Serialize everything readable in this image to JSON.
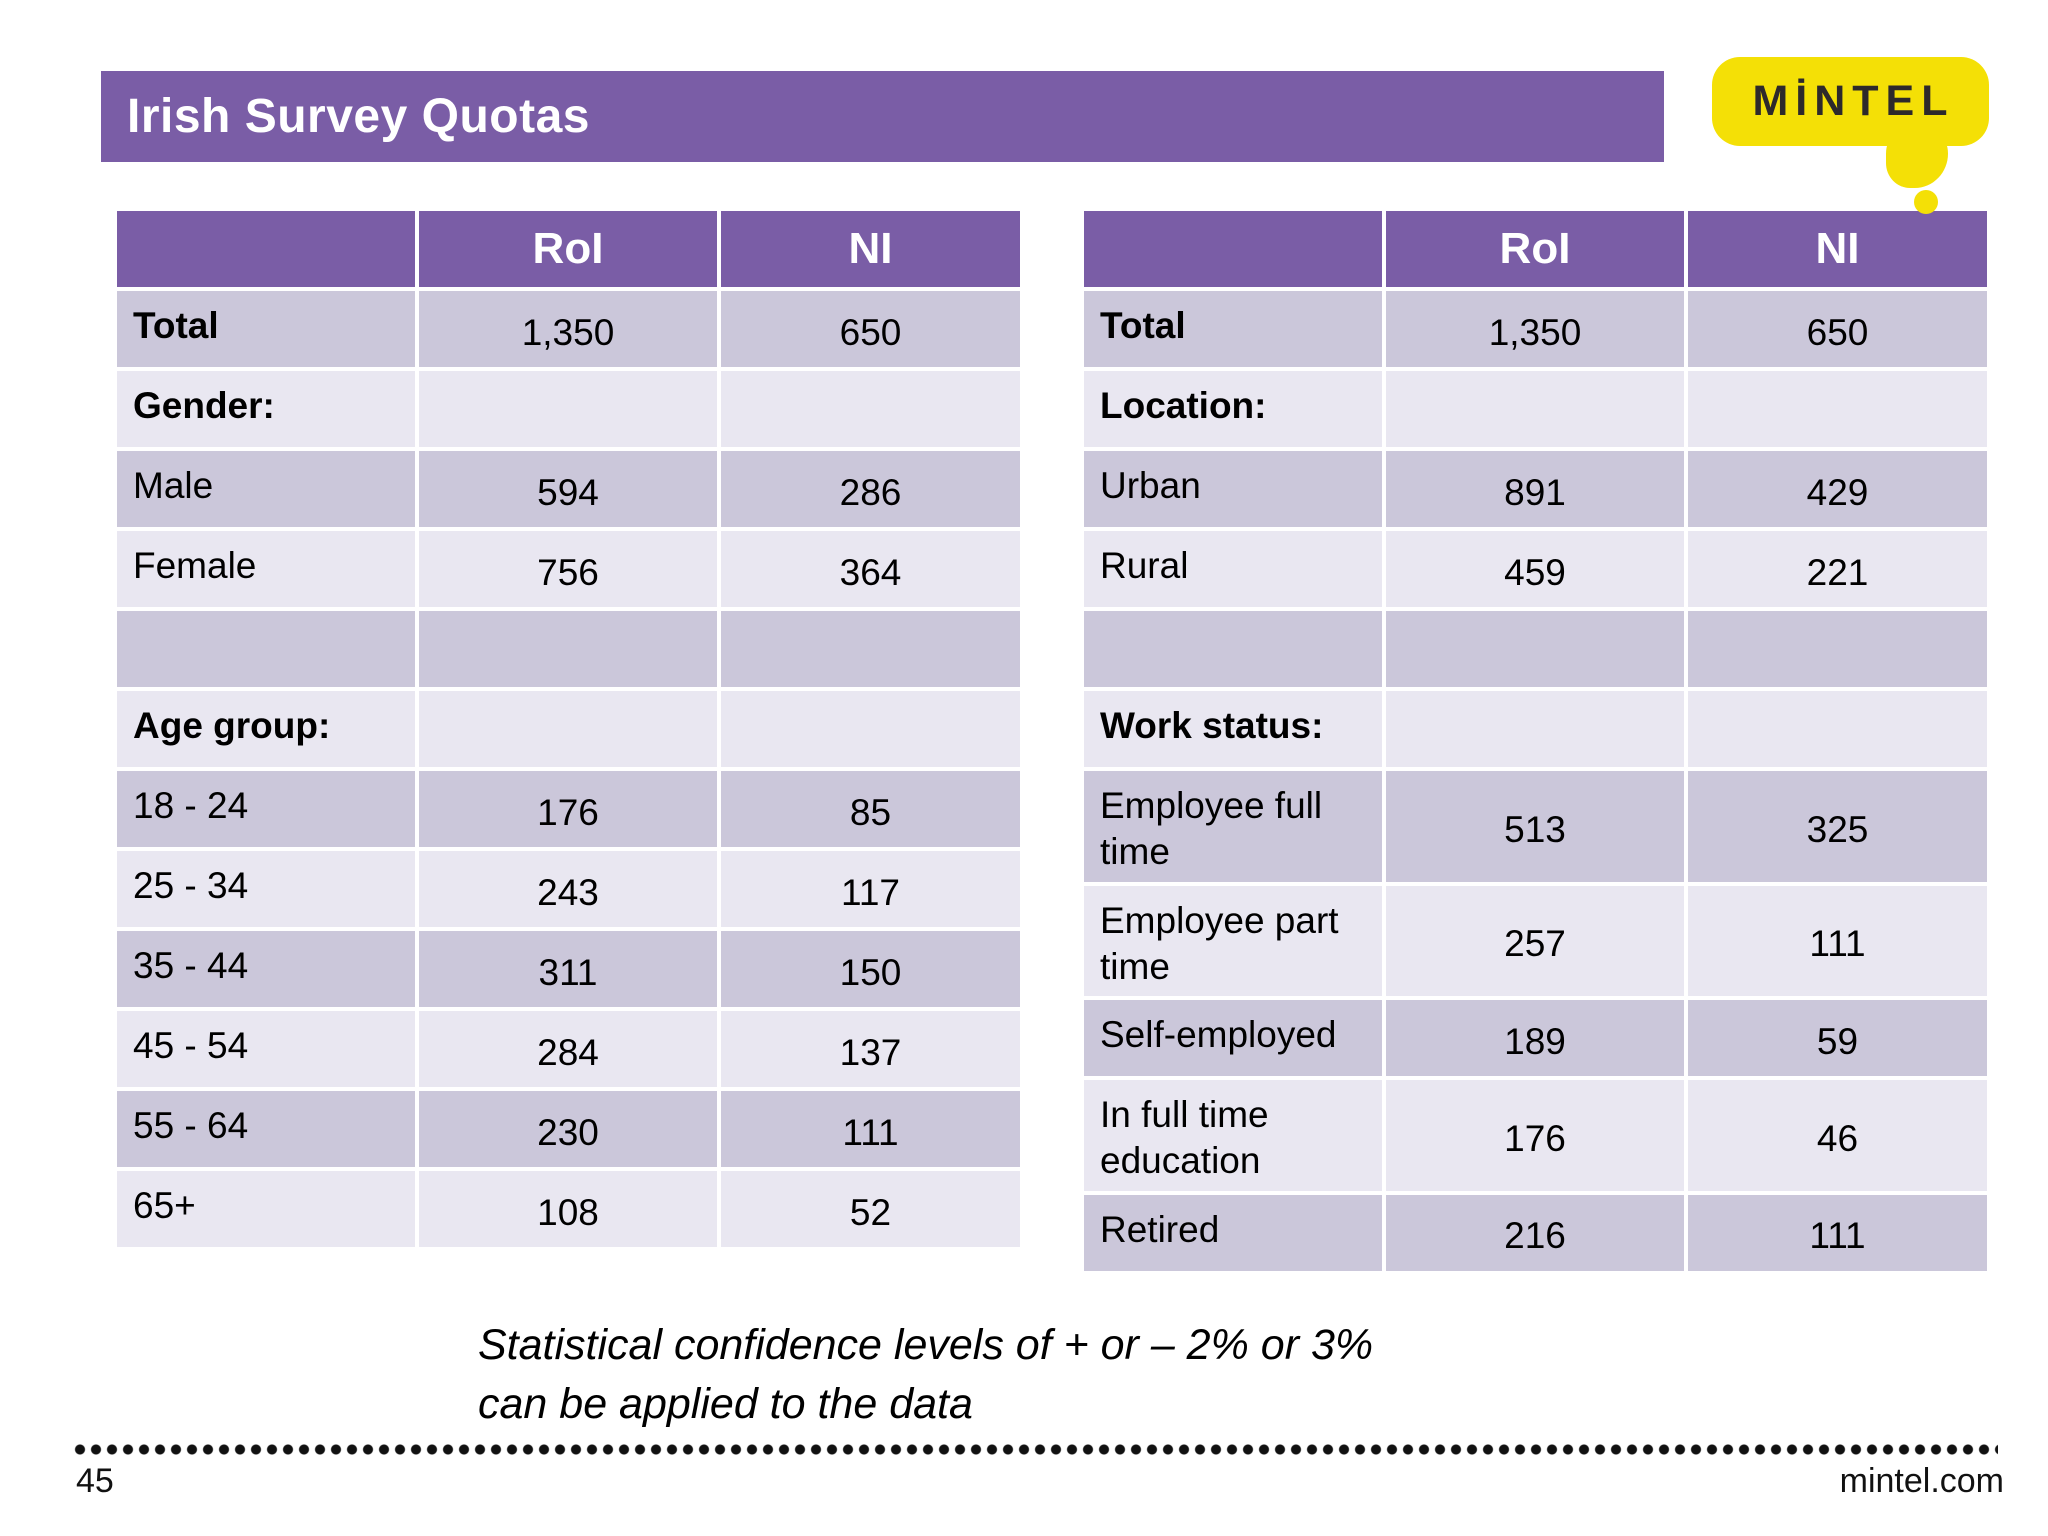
{
  "title": "Irish Survey Quotas",
  "logo": {
    "text": "MİNTEL"
  },
  "tables": [
    {
      "name": "gender-age-quotas",
      "header": [
        "",
        "RoI",
        "NI"
      ],
      "rows": [
        {
          "label": "Total",
          "bold": true,
          "values": [
            "1,350",
            "650"
          ]
        },
        {
          "label": "Gender:",
          "bold": true,
          "values": [
            "",
            ""
          ]
        },
        {
          "label": "Male",
          "bold": false,
          "values": [
            "594",
            "286"
          ]
        },
        {
          "label": "Female",
          "bold": false,
          "values": [
            "756",
            "364"
          ]
        },
        {
          "label": "",
          "bold": false,
          "values": [
            "",
            ""
          ]
        },
        {
          "label": "Age group:",
          "bold": true,
          "values": [
            "",
            ""
          ]
        },
        {
          "label": "18 - 24",
          "bold": false,
          "values": [
            "176",
            "85"
          ]
        },
        {
          "label": "25 - 34",
          "bold": false,
          "values": [
            "243",
            "117"
          ]
        },
        {
          "label": "35 - 44",
          "bold": false,
          "values": [
            "311",
            "150"
          ]
        },
        {
          "label": "45 - 54",
          "bold": false,
          "values": [
            "284",
            "137"
          ]
        },
        {
          "label": "55 - 64",
          "bold": false,
          "values": [
            "230",
            "111"
          ]
        },
        {
          "label": "65+",
          "bold": false,
          "values": [
            "108",
            "52"
          ]
        }
      ]
    },
    {
      "name": "location-workstatus-quotas",
      "header": [
        "",
        "RoI",
        "NI"
      ],
      "rows": [
        {
          "label": "Total",
          "bold": true,
          "values": [
            "1,350",
            "650"
          ]
        },
        {
          "label": "Location:",
          "bold": true,
          "values": [
            "",
            ""
          ]
        },
        {
          "label": "Urban",
          "bold": false,
          "values": [
            "891",
            "429"
          ]
        },
        {
          "label": "Rural",
          "bold": false,
          "values": [
            "459",
            "221"
          ]
        },
        {
          "label": "",
          "bold": false,
          "values": [
            "",
            ""
          ]
        },
        {
          "label": "Work status:",
          "bold": true,
          "values": [
            "",
            ""
          ]
        },
        {
          "label": "Employee full time",
          "bold": false,
          "values": [
            "513",
            "325"
          ]
        },
        {
          "label": "Employee part time",
          "bold": false,
          "values": [
            "257",
            "111"
          ]
        },
        {
          "label": "Self-employed",
          "bold": false,
          "values": [
            "189",
            "59"
          ]
        },
        {
          "label": "In full time education",
          "bold": false,
          "values": [
            "176",
            "46"
          ]
        },
        {
          "label": "Retired",
          "bold": false,
          "values": [
            "216",
            "111"
          ]
        }
      ]
    }
  ],
  "footnote": {
    "line1": "Statistical confidence levels of + or – 2% or 3%",
    "line2": "can be applied to the data"
  },
  "footer": {
    "page_number": "45",
    "website": "mintel.com"
  },
  "colors": {
    "header_purple": "#7a5da6",
    "band_dark": "#cbc7da",
    "band_light": "#e9e7f1",
    "logo_yellow": "#f4e006",
    "logo_text_dark": "#2d292b",
    "dot_color": "#111111"
  }
}
